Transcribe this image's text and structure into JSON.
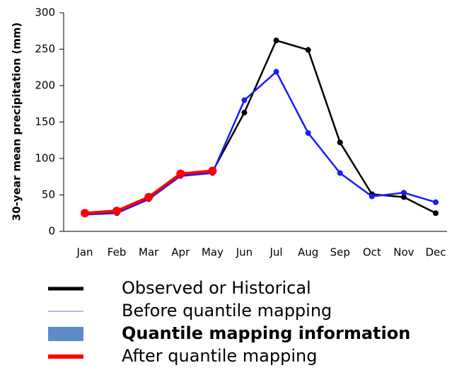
{
  "chart_data": {
    "type": "line",
    "y_label": "30-year mean precipitation (mm)",
    "categories": [
      "Jan",
      "Feb",
      "Mar",
      "Apr",
      "May",
      "Jun",
      "Jul",
      "Aug",
      "Sep",
      "Oct",
      "Nov",
      "Dec"
    ],
    "ylim": [
      0,
      300
    ],
    "yticks": [
      0,
      50,
      100,
      150,
      200,
      250,
      300
    ],
    "series": [
      {
        "name": "Observed or Historical",
        "color": "#000000",
        "legend_style": "line",
        "values": [
          25,
          27,
          46,
          78,
          82,
          163,
          262,
          249,
          122,
          51,
          47,
          25
        ]
      },
      {
        "name": "Before quantile mapping",
        "color": "#1a1aff",
        "legend_color": "#c8b4dc",
        "legend_style": "thin-line",
        "values": [
          23,
          25,
          44,
          76,
          80,
          180,
          219,
          135,
          80,
          48,
          53,
          40
        ]
      },
      {
        "name": "Quantile mapping information",
        "color": "#5b8bc9",
        "legend_style": "box",
        "legend_bold": true,
        "values": [
          null,
          null,
          null,
          null,
          null,
          null,
          null,
          null,
          null,
          null,
          null,
          null
        ]
      },
      {
        "name": "After quantile mapping",
        "color": "#ff0000",
        "legend_style": "thick-line",
        "values": [
          25,
          28,
          47,
          79,
          83,
          null,
          null,
          null,
          null,
          null,
          null,
          null
        ]
      }
    ]
  }
}
